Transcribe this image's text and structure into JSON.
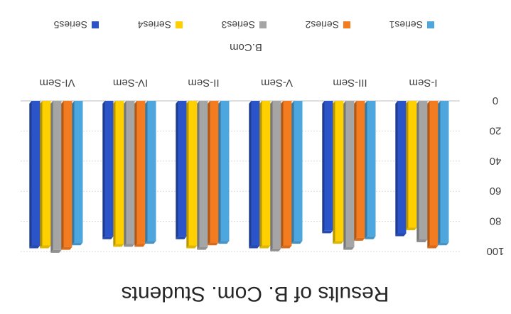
{
  "chart_data": {
    "type": "bar",
    "title": "Results of B. Com. Students",
    "xlabel": "B.Com",
    "ylabel": "",
    "ylim": [
      0,
      100
    ],
    "yticks": [
      0,
      20,
      40,
      60,
      80,
      100
    ],
    "categories": [
      "I-Sem",
      "III-Sem",
      "V-Sem",
      "II-Sem",
      "IV-Sem",
      "VI-Sem"
    ],
    "series": [
      {
        "name": "Series1",
        "color": "#4ea6df",
        "values": [
          94,
          90,
          93,
          93,
          93,
          94
        ]
      },
      {
        "name": "Series2",
        "color": "#f47c20",
        "values": [
          96,
          91,
          96,
          94,
          95,
          97
        ]
      },
      {
        "name": "Series3",
        "color": "#a5a5a5",
        "values": [
          92,
          97,
          98,
          97,
          95,
          99
        ]
      },
      {
        "name": "Series4",
        "color": "#ffd000",
        "values": [
          84,
          93,
          96,
          96,
          95,
          96
        ]
      },
      {
        "name": "Series5",
        "color": "#2a54c8",
        "values": [
          88,
          86,
          96,
          90,
          90,
          96
        ]
      }
    ],
    "grid": true,
    "legend_position": "bottom"
  }
}
